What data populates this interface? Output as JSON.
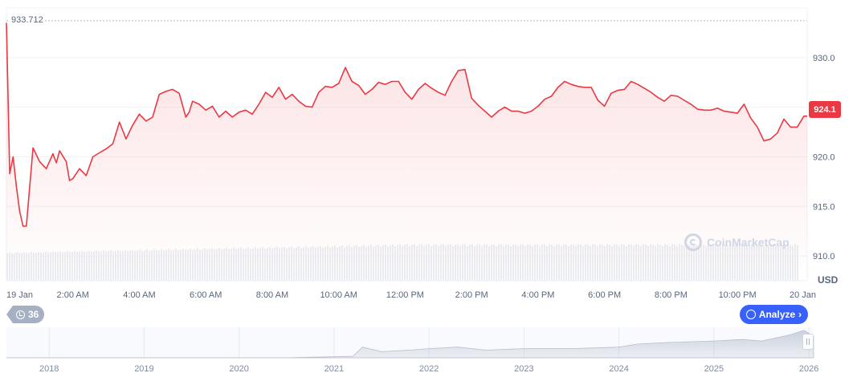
{
  "chart_data": {
    "type": "line",
    "title": "",
    "xlabel": "",
    "ylabel": "",
    "currency": "USD",
    "ylim": [
      907.5,
      935.0
    ],
    "y_ticks": [
      "930.0",
      "925.0",
      "920.0",
      "915.0",
      "910.0"
    ],
    "y_tick_values": [
      930.0,
      925.0,
      920.0,
      915.0,
      910.0
    ],
    "x_ticks": [
      "19 Jan",
      "2:00 AM",
      "4:00 AM",
      "6:00 AM",
      "8:00 AM",
      "10:00 AM",
      "12:00 PM",
      "2:00 PM",
      "4:00 PM",
      "6:00 PM",
      "8:00 PM",
      "10:00 PM",
      "20 Jan"
    ],
    "x_tick_hours": [
      0,
      2,
      4,
      6,
      8,
      10,
      12,
      14,
      16,
      18,
      20,
      22,
      24
    ],
    "max_price": 933.712,
    "max_price_label": "933.712",
    "current_price": 924.1,
    "current_price_label": "924.1",
    "line_color": "#ea3943",
    "series": [
      {
        "x_hours": [
          0,
          0.1,
          0.2,
          0.3,
          0.4,
          0.5,
          0.6,
          0.8,
          1.0,
          1.2,
          1.4,
          1.5,
          1.6,
          1.8,
          1.9,
          2.0,
          2.2,
          2.4,
          2.6,
          2.8,
          3.0,
          3.2,
          3.4,
          3.6,
          3.8,
          4.0,
          4.2,
          4.4,
          4.6,
          4.8,
          5.0,
          5.2,
          5.4,
          5.5,
          5.6,
          5.8,
          6.0,
          6.2,
          6.4,
          6.6,
          6.8,
          7.0,
          7.2,
          7.4,
          7.6,
          7.8,
          8.0,
          8.2,
          8.4,
          8.6,
          8.8,
          9.0,
          9.2,
          9.4,
          9.6,
          9.8,
          10.0,
          10.2,
          10.4,
          10.6,
          10.8,
          11.0,
          11.2,
          11.4,
          11.6,
          11.8,
          12.0,
          12.2,
          12.4,
          12.6,
          12.8,
          13.0,
          13.2,
          13.4,
          13.6,
          13.8,
          14.0,
          14.2,
          14.4,
          14.6,
          14.8,
          15.0,
          15.2,
          15.4,
          15.6,
          15.8,
          16.0,
          16.2,
          16.4,
          16.6,
          16.8,
          17.0,
          17.2,
          17.4,
          17.6,
          17.8,
          18.0,
          18.2,
          18.4,
          18.6,
          18.8,
          19.0,
          19.2,
          19.4,
          19.6,
          19.8,
          20.0,
          20.2,
          20.4,
          20.6,
          20.8,
          21.0,
          21.2,
          21.4,
          21.6,
          21.8,
          22.0,
          22.2,
          22.4,
          22.6,
          22.8,
          23.0,
          23.2,
          23.4,
          23.6,
          23.8,
          24.0,
          24.1
        ],
        "values": [
          933.5,
          918.3,
          920.0,
          917.0,
          914.5,
          913.0,
          913.0,
          920.9,
          919.5,
          918.8,
          920.3,
          919.4,
          920.6,
          919.5,
          917.6,
          917.8,
          918.8,
          918.1,
          920.0,
          920.4,
          920.8,
          921.3,
          923.5,
          921.8,
          923.2,
          924.3,
          923.6,
          924.0,
          926.3,
          926.6,
          926.8,
          926.4,
          924.0,
          924.5,
          925.6,
          925.3,
          924.7,
          925.1,
          924.0,
          924.6,
          924.0,
          924.5,
          924.7,
          924.3,
          925.3,
          926.5,
          926.0,
          927.0,
          925.8,
          926.3,
          925.6,
          925.1,
          925.0,
          926.5,
          927.1,
          927.0,
          927.4,
          929.0,
          927.6,
          927.2,
          926.3,
          926.8,
          927.5,
          927.3,
          927.6,
          927.6,
          926.5,
          925.8,
          926.8,
          927.4,
          926.9,
          926.5,
          926.2,
          927.6,
          928.7,
          928.8,
          925.9,
          925.2,
          924.6,
          924.0,
          924.6,
          925.0,
          924.6,
          924.6,
          924.4,
          924.6,
          925.1,
          925.8,
          926.1,
          927.0,
          927.6,
          927.3,
          927.1,
          927.0,
          927.0,
          925.7,
          925.1,
          926.4,
          926.7,
          926.8,
          927.6,
          927.3,
          926.9,
          926.5,
          926.0,
          925.6,
          926.2,
          926.1,
          925.7,
          925.3,
          924.8,
          924.7,
          924.7,
          924.9,
          924.6,
          924.5,
          924.4,
          925.3,
          923.9,
          923.0,
          921.6,
          921.8,
          922.4,
          923.8,
          923.0,
          923.0,
          924.1,
          924.1
        ]
      }
    ],
    "volume_note": "",
    "navigator": {
      "x_ticks": [
        "2018",
        "2019",
        "2020",
        "2021",
        "2022",
        "2023",
        "2024",
        "2025",
        "2026"
      ],
      "x_tick_years": [
        2018,
        2019,
        2020,
        2021,
        2022,
        2023,
        2024,
        2025,
        2026
      ],
      "range_years": [
        2017.55,
        2026.05
      ],
      "profile_years": [
        2017.55,
        2020.5,
        2021.2,
        2021.3,
        2021.5,
        2021.8,
        2022.0,
        2022.3,
        2022.6,
        2023.0,
        2023.5,
        2024.0,
        2024.2,
        2024.5,
        2025.0,
        2025.3,
        2025.5,
        2025.8,
        2025.95,
        2026.05
      ],
      "profile_levels": [
        0,
        0,
        0.05,
        0.35,
        0.2,
        0.25,
        0.3,
        0.35,
        0.25,
        0.3,
        0.3,
        0.35,
        0.45,
        0.5,
        0.55,
        0.6,
        0.55,
        0.75,
        0.9,
        0.7
      ]
    }
  },
  "ui": {
    "event_count": "36",
    "analyze_label": "Analyze",
    "watermark_text": "CoinMarketCap",
    "currency_label": "USD"
  }
}
